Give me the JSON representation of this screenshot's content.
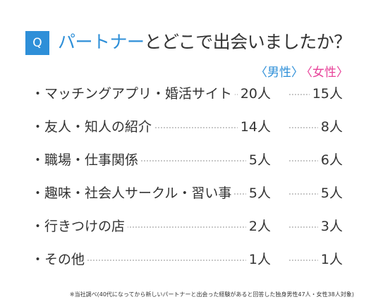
{
  "header": {
    "badge": "Q",
    "title_highlight": "パートナー",
    "title_rest": "とどこで出会いましたか？"
  },
  "legend": {
    "male": "〈男性〉",
    "female": "〈女性〉"
  },
  "colors": {
    "accent_blue": "#2e8fd8",
    "accent_pink": "#e8439a"
  },
  "chart_data": {
    "type": "table",
    "title": "パートナーとどこで出会いましたか？",
    "columns": [
      "男性",
      "女性"
    ],
    "unit": "人",
    "rows": [
      {
        "label": "・マッチングアプリ・婚活サイト",
        "male": "20人",
        "female": "15人",
        "male_value": 20,
        "female_value": 15
      },
      {
        "label": "・友人・知人の紹介",
        "male": "14人",
        "female": "8人",
        "male_value": 14,
        "female_value": 8
      },
      {
        "label": "・職場・仕事関係",
        "male": "5人",
        "female": "6人",
        "male_value": 5,
        "female_value": 6
      },
      {
        "label": "・趣味・社会人サークル・習い事",
        "male": "5人",
        "female": "5人",
        "male_value": 5,
        "female_value": 5
      },
      {
        "label": "・行きつけの店",
        "male": "2人",
        "female": "3人",
        "male_value": 2,
        "female_value": 3
      },
      {
        "label": "・その他",
        "male": "1人",
        "female": "1人",
        "male_value": 1,
        "female_value": 1
      }
    ]
  },
  "footnote": "※当社調べ(40代になってから新しいパートナーと出会った経験があると回答した独身男性47人・女性38人対象)"
}
